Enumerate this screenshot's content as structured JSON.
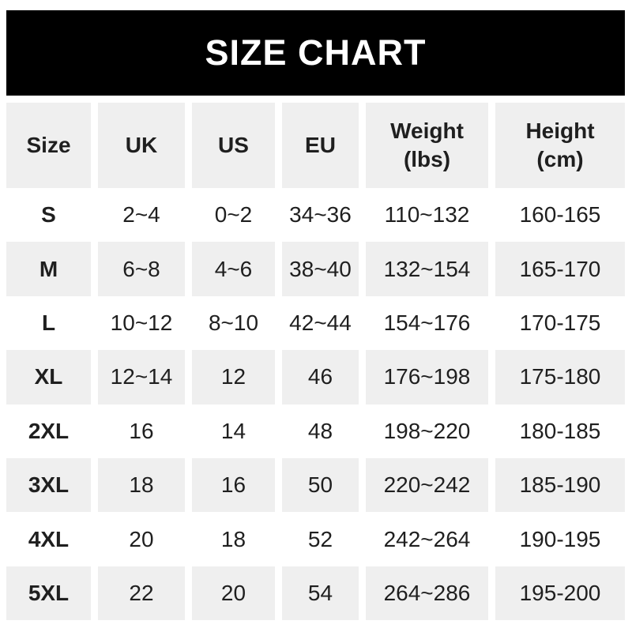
{
  "banner": {
    "title": "SIZE CHART"
  },
  "chart_data": {
    "type": "table",
    "title": "SIZE CHART",
    "columns": [
      {
        "key": "size",
        "label": "Size"
      },
      {
        "key": "uk",
        "label": "UK"
      },
      {
        "key": "us",
        "label": "US"
      },
      {
        "key": "eu",
        "label": "EU"
      },
      {
        "key": "weight",
        "label": "Weight\n(lbs)"
      },
      {
        "key": "height",
        "label": "Height\n(cm)"
      }
    ],
    "rows": [
      [
        "S",
        "2~4",
        "0~2",
        "34~36",
        "110~132",
        "160-165"
      ],
      [
        "M",
        "6~8",
        "4~6",
        "38~40",
        "132~154",
        "165-170"
      ],
      [
        "L",
        "10~12",
        "8~10",
        "42~44",
        "154~176",
        "170-175"
      ],
      [
        "XL",
        "12~14",
        "12",
        "46",
        "176~198",
        "175-180"
      ],
      [
        "2XL",
        "16",
        "14",
        "48",
        "198~220",
        "180-185"
      ],
      [
        "3XL",
        "18",
        "16",
        "50",
        "220~242",
        "185-190"
      ],
      [
        "4XL",
        "20",
        "18",
        "52",
        "242~264",
        "190-195"
      ],
      [
        "5XL",
        "22",
        "20",
        "54",
        "264~286",
        "195-200"
      ]
    ]
  },
  "colors": {
    "banner_bg": "#000000",
    "banner_text": "#ffffff",
    "row_bg": "#ffffff",
    "row_alt_bg": "#efefef",
    "text": "#1f1f1f"
  }
}
